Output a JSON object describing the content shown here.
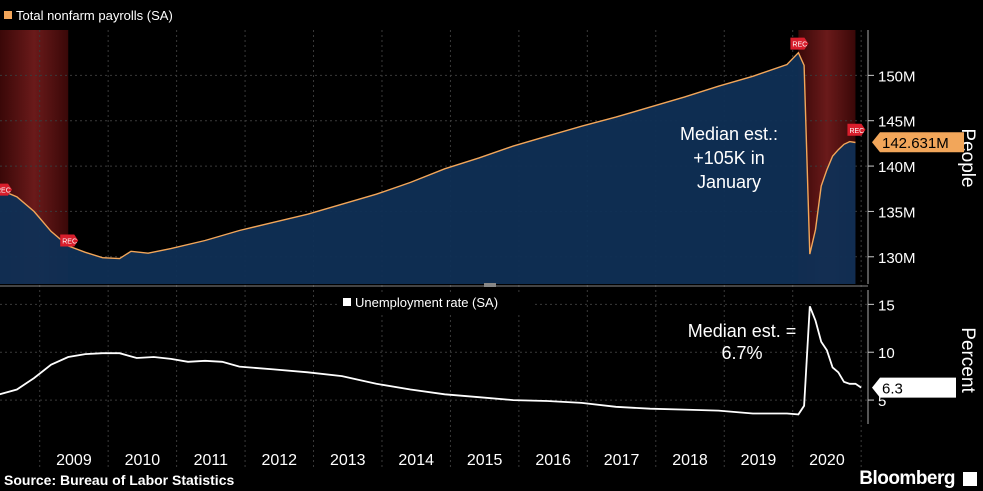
{
  "source_text": "Source: Bureau of Labor Statistics",
  "brand": "Bloomberg",
  "chart_data": [
    {
      "type": "area",
      "legend": "Total nonfarm payrolls (SA)",
      "ylabel": "People",
      "yticks": [
        "130M",
        "135M",
        "140M",
        "145M",
        "150M"
      ],
      "ylim_millions": [
        127,
        155
      ],
      "last_value_label": "142.631M",
      "annotation": [
        "Median est.:",
        "+105K in",
        "January"
      ],
      "recession_marker": "REC",
      "recessions": [
        [
          "2007-12",
          "2009-06"
        ],
        [
          "2020-02",
          "2020-12"
        ]
      ],
      "series_millions": [
        [
          "2008-06",
          137.4
        ],
        [
          "2008-09",
          136.6
        ],
        [
          "2008-12",
          135.0
        ],
        [
          "2009-03",
          132.8
        ],
        [
          "2009-06",
          131.2
        ],
        [
          "2009-09",
          130.5
        ],
        [
          "2009-12",
          129.9
        ],
        [
          "2010-03",
          129.8
        ],
        [
          "2010-05",
          130.6
        ],
        [
          "2010-08",
          130.4
        ],
        [
          "2010-12",
          130.9
        ],
        [
          "2011-06",
          131.8
        ],
        [
          "2011-12",
          132.9
        ],
        [
          "2012-06",
          133.8
        ],
        [
          "2012-12",
          134.7
        ],
        [
          "2013-06",
          135.8
        ],
        [
          "2013-12",
          136.9
        ],
        [
          "2014-06",
          138.2
        ],
        [
          "2014-12",
          139.7
        ],
        [
          "2015-06",
          140.9
        ],
        [
          "2015-12",
          142.2
        ],
        [
          "2016-06",
          143.3
        ],
        [
          "2016-12",
          144.4
        ],
        [
          "2017-06",
          145.4
        ],
        [
          "2017-12",
          146.5
        ],
        [
          "2018-06",
          147.6
        ],
        [
          "2018-12",
          148.8
        ],
        [
          "2019-06",
          149.9
        ],
        [
          "2019-12",
          151.2
        ],
        [
          "2020-02",
          152.5
        ],
        [
          "2020-03",
          151.1
        ],
        [
          "2020-04",
          130.3
        ],
        [
          "2020-05",
          133.0
        ],
        [
          "2020-06",
          137.8
        ],
        [
          "2020-07",
          139.6
        ],
        [
          "2020-08",
          141.1
        ],
        [
          "2020-09",
          141.8
        ],
        [
          "2020-10",
          142.4
        ],
        [
          "2020-11",
          142.7
        ],
        [
          "2020-12",
          142.6
        ]
      ]
    },
    {
      "type": "line",
      "legend": "Unemployment rate (SA)",
      "ylabel": "Percent",
      "yticks": [
        "5",
        "10",
        "15"
      ],
      "ylim": [
        2.5,
        16.5
      ],
      "last_value_label": "6.3",
      "annotation": [
        "Median est. =",
        "6.7%"
      ],
      "series": [
        [
          "2008-06",
          5.6
        ],
        [
          "2008-09",
          6.1
        ],
        [
          "2008-12",
          7.3
        ],
        [
          "2009-03",
          8.7
        ],
        [
          "2009-06",
          9.5
        ],
        [
          "2009-09",
          9.8
        ],
        [
          "2009-12",
          9.9
        ],
        [
          "2010-03",
          9.9
        ],
        [
          "2010-06",
          9.4
        ],
        [
          "2010-09",
          9.5
        ],
        [
          "2010-12",
          9.3
        ],
        [
          "2011-03",
          9.0
        ],
        [
          "2011-06",
          9.1
        ],
        [
          "2011-09",
          9.0
        ],
        [
          "2011-12",
          8.5
        ],
        [
          "2012-06",
          8.2
        ],
        [
          "2012-12",
          7.9
        ],
        [
          "2013-06",
          7.5
        ],
        [
          "2013-12",
          6.7
        ],
        [
          "2014-06",
          6.1
        ],
        [
          "2014-12",
          5.6
        ],
        [
          "2015-06",
          5.3
        ],
        [
          "2015-12",
          5.0
        ],
        [
          "2016-06",
          4.9
        ],
        [
          "2016-12",
          4.7
        ],
        [
          "2017-06",
          4.3
        ],
        [
          "2017-12",
          4.1
        ],
        [
          "2018-06",
          4.0
        ],
        [
          "2018-12",
          3.9
        ],
        [
          "2019-06",
          3.6
        ],
        [
          "2019-12",
          3.6
        ],
        [
          "2020-02",
          3.5
        ],
        [
          "2020-03",
          4.4
        ],
        [
          "2020-04",
          14.8
        ],
        [
          "2020-05",
          13.3
        ],
        [
          "2020-06",
          11.1
        ],
        [
          "2020-07",
          10.2
        ],
        [
          "2020-08",
          8.4
        ],
        [
          "2020-09",
          7.9
        ],
        [
          "2020-10",
          6.9
        ],
        [
          "2020-11",
          6.7
        ],
        [
          "2020-12",
          6.7
        ],
        [
          "2021-01",
          6.3
        ]
      ]
    }
  ],
  "x_axis": {
    "tick_labels": [
      "2009",
      "2010",
      "2011",
      "2012",
      "2013",
      "2014",
      "2015",
      "2016",
      "2017",
      "2018",
      "2019",
      "2020"
    ]
  },
  "colors": {
    "payroll_line": "#f2a65a",
    "payroll_fill": "#0f2f55",
    "legend_swatch": "#f2a65a",
    "unemployment_line": "#ffffff",
    "recession_band": "#5a1212",
    "rec_marker": "#d81e2c",
    "grid": "#3a3a3a"
  }
}
